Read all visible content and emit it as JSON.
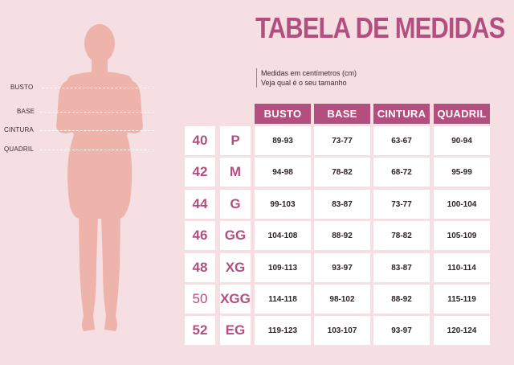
{
  "title": "TABELA DE MEDIDAS",
  "subtitle": {
    "line1": "Medidas em centímetros (cm)",
    "line2": "Veja qual é o seu tamanho"
  },
  "body_labels": [
    "BUSTO",
    "BASE",
    "CINTURA",
    "QUADRIL"
  ],
  "columns": [
    "BUSTO",
    "BASE",
    "CINTURA",
    "QUADRIL"
  ],
  "rows": [
    {
      "num": "40",
      "size": "P",
      "values": [
        "89-93",
        "73-77",
        "63-67",
        "90-94"
      ]
    },
    {
      "num": "42",
      "size": "M",
      "values": [
        "94-98",
        "78-82",
        "68-72",
        "95-99"
      ]
    },
    {
      "num": "44",
      "size": "G",
      "values": [
        "99-103",
        "83-87",
        "73-77",
        "100-104"
      ]
    },
    {
      "num": "46",
      "size": "GG",
      "values": [
        "104-108",
        "88-92",
        "78-82",
        "105-109"
      ]
    },
    {
      "num": "48",
      "size": "XG",
      "values": [
        "109-113",
        "93-97",
        "83-87",
        "110-114"
      ]
    },
    {
      "num": "50",
      "size": "XGG",
      "values": [
        "114-118",
        "98-102",
        "88-92",
        "115-119"
      ]
    },
    {
      "num": "52",
      "size": "EG",
      "values": [
        "119-123",
        "103-107",
        "93-97",
        "120-124"
      ]
    }
  ],
  "colors": {
    "accent": "#b24f7e",
    "background": "#f6dfe3",
    "silhouette": "#eeb4ab"
  }
}
